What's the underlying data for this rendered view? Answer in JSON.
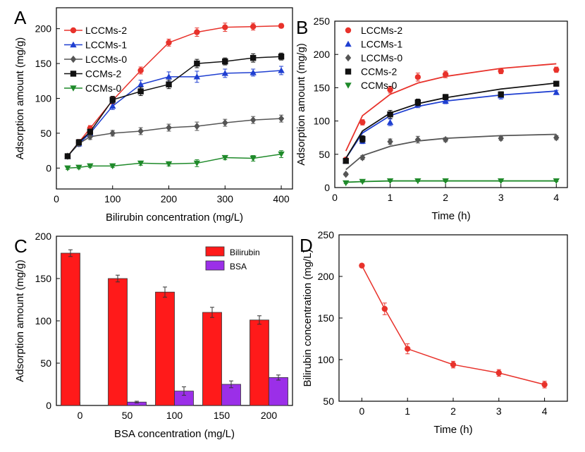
{
  "chart_data": [
    {
      "panel": "A",
      "type": "line",
      "xlabel": "Bilirubin concentration (mg/L)",
      "ylabel": "Adsorption amount (mg/g)",
      "xlim": [
        0,
        420
      ],
      "ylim": [
        -30,
        230
      ],
      "xticks": [
        0,
        100,
        200,
        300,
        400
      ],
      "yticks": [
        0,
        50,
        100,
        150,
        200
      ],
      "legend_position": "top-left",
      "x": [
        20,
        40,
        60,
        100,
        150,
        200,
        250,
        300,
        350,
        400
      ],
      "series": [
        {
          "name": "LCCMs-2",
          "color": "#e8322b",
          "marker": "circle",
          "values": [
            17,
            37,
            57,
            97,
            140,
            180,
            195,
            202,
            203,
            204
          ],
          "errors": [
            3,
            4,
            4,
            5,
            5,
            5,
            6,
            6,
            5,
            3
          ]
        },
        {
          "name": "LCCMs-1",
          "color": "#1f3fd1",
          "marker": "triangle-up",
          "values": [
            17,
            35,
            50,
            89,
            120,
            131,
            131,
            136,
            137,
            140
          ],
          "errors": [
            3,
            4,
            4,
            5,
            6,
            7,
            8,
            6,
            5,
            6
          ]
        },
        {
          "name": "LCCMs-0",
          "color": "#555555",
          "marker": "diamond",
          "values": [
            17,
            35,
            45,
            50,
            53,
            58,
            60,
            65,
            69,
            71
          ],
          "errors": [
            3,
            3,
            4,
            4,
            5,
            5,
            6,
            5,
            5,
            5
          ]
        },
        {
          "name": "CCMs-2",
          "color": "#111111",
          "marker": "square",
          "values": [
            17,
            37,
            52,
            98,
            110,
            120,
            150,
            153,
            158,
            160
          ],
          "errors": [
            3,
            4,
            4,
            5,
            6,
            6,
            6,
            5,
            6,
            5
          ]
        },
        {
          "name": "CCMs-0",
          "color": "#1f8a2a",
          "marker": "triangle-down",
          "values": [
            0,
            1,
            3,
            3,
            7,
            6,
            7,
            15,
            14,
            20
          ],
          "errors": [
            2,
            2,
            2,
            2,
            3,
            3,
            5,
            3,
            4,
            5
          ]
        }
      ]
    },
    {
      "panel": "B",
      "type": "scatter",
      "xlabel": "Time (h)",
      "ylabel": "Adsorption amount (mg/g)",
      "xlim": [
        0,
        4.2
      ],
      "ylim": [
        0,
        250
      ],
      "xticks": [
        0,
        1,
        2,
        3,
        4
      ],
      "yticks": [
        0,
        50,
        100,
        150,
        200,
        250
      ],
      "legend_position": "top-left",
      "x": [
        0.2,
        0.5,
        1,
        1.5,
        2,
        3,
        4
      ],
      "series": [
        {
          "name": "LCCMs-2",
          "color": "#e8322b",
          "marker": "circle",
          "values": [
            42,
            98,
            147,
            166,
            170,
            175,
            177
          ],
          "errors": [
            3,
            4,
            5,
            6,
            5,
            4,
            4
          ],
          "fit": [
            55,
            108,
            140,
            157,
            167,
            179,
            186
          ]
        },
        {
          "name": "LCCMs-1",
          "color": "#1f3fd1",
          "marker": "triangle-up",
          "values": [
            40,
            70,
            98,
            125,
            130,
            138,
            143
          ],
          "errors": [
            3,
            4,
            5,
            5,
            4,
            5,
            3
          ],
          "fit": [
            44,
            82,
            108,
            122,
            130,
            139,
            145
          ]
        },
        {
          "name": "LCCMs-0",
          "color": "#555555",
          "marker": "diamond",
          "values": [
            20,
            45,
            69,
            72,
            72,
            74,
            75
          ],
          "errors": [
            2,
            3,
            4,
            5,
            3,
            3,
            3
          ],
          "fit": [
            27,
            48,
            62,
            70,
            74,
            78,
            80
          ]
        },
        {
          "name": "CCMs-2",
          "color": "#111111",
          "marker": "square",
          "values": [
            40,
            73,
            110,
            128,
            136,
            140,
            156
          ],
          "errors": [
            3,
            5,
            6,
            5,
            4,
            4,
            3
          ],
          "fit": [
            44,
            85,
            112,
            126,
            135,
            148,
            157
          ]
        },
        {
          "name": "CCMs-0",
          "color": "#1f8a2a",
          "marker": "triangle-down",
          "values": [
            7,
            9,
            10,
            10,
            10,
            10,
            10
          ],
          "errors": [
            1,
            1,
            1,
            1,
            1,
            1,
            1
          ],
          "fit": [
            8,
            9,
            10,
            10,
            10,
            10,
            10
          ]
        }
      ]
    },
    {
      "panel": "C",
      "type": "bar",
      "xlabel": "BSA concentration (mg/L)",
      "ylabel": "Adsorption amount (mg/g)",
      "ylim": [
        0,
        200
      ],
      "yticks": [
        0,
        50,
        100,
        150,
        200
      ],
      "legend_position": "top-right",
      "categories": [
        "0",
        "50",
        "100",
        "150",
        "200"
      ],
      "series": [
        {
          "name": "Bilirubin",
          "color": "#ff1a1a",
          "values": [
            180,
            150,
            134,
            110,
            101
          ],
          "errors": [
            4,
            4,
            6,
            6,
            5
          ]
        },
        {
          "name": "BSA",
          "color": "#9b2fe8",
          "values": [
            0,
            4,
            17,
            25,
            33
          ],
          "errors": [
            0,
            1,
            5,
            4,
            3
          ]
        }
      ]
    },
    {
      "panel": "D",
      "type": "line",
      "xlabel": "Time (h)",
      "ylabel": "Bilirubin concentration (mg/L)",
      "xlim": [
        -0.5,
        4.5
      ],
      "ylim": [
        50,
        250
      ],
      "xticks": [
        0,
        1,
        2,
        3,
        4
      ],
      "yticks": [
        50,
        100,
        150,
        200,
        250
      ],
      "x": [
        0,
        0.5,
        1,
        2,
        3,
        4
      ],
      "series": [
        {
          "name": "",
          "color": "#e8322b",
          "marker": "circle",
          "values": [
            213,
            161,
            113,
            94,
            84,
            70
          ],
          "errors": [
            2,
            7,
            6,
            4,
            4,
            4
          ]
        }
      ]
    }
  ]
}
